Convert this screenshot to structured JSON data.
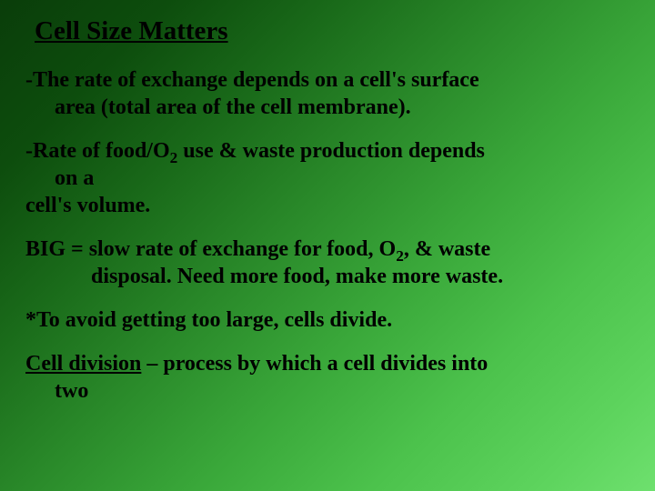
{
  "title": "Cell Size Matters",
  "p1_l1": "-The rate of exchange depends on a cell's surface",
  "p1_l2": "area (total area of the cell membrane).",
  "p2_l1a": "-Rate of food/O",
  "p2_l1sub": "2",
  "p2_l1b": " use & waste production depends",
  "p2_l2": "on a",
  "p2_l3": "cell's volume.",
  "p3_l1a": "BIG = slow rate of exchange for food, O",
  "p3_l1sub": "2",
  "p3_l1b": ", & waste",
  "p3_l2": "disposal. Need more food, make more waste.",
  "p4": "*To avoid getting too large, cells divide.",
  "p5_term": "Cell division",
  "p5_rest": " – process by which a cell divides into",
  "p5_l2": "two"
}
